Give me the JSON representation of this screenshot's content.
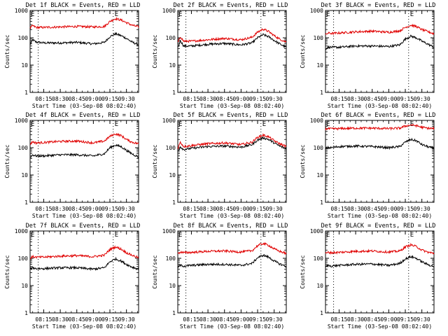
{
  "figure": {
    "ylabel": "Counts/sec",
    "xlabel": "Start Time (03-Sep-08 08:02:40)",
    "event_marker": "E",
    "colors": {
      "events": "#000000",
      "lld": "#e00000",
      "axes": "#000000",
      "background": "#ffffff"
    }
  },
  "chart_data": [
    {
      "type": "line",
      "panel": 1,
      "title": "Det 1f BLACK = Events, RED = LLD",
      "xlabel": "Start Time (03-Sep-08 08:02:40)",
      "ylabel": "Counts/sec",
      "yscale": "log",
      "ylim": [
        1,
        1000
      ],
      "yticks": [
        "1",
        "10",
        "100",
        "1000"
      ],
      "xlim": [
        "08:02:40",
        "09:41"
      ],
      "xticks": [
        "08:15",
        "08:30",
        "08:45",
        "09:00",
        "09:15",
        "09:30"
      ],
      "markers": [
        {
          "time": "08:10",
          "label": ""
        },
        {
          "time": "09:18",
          "label": "E"
        }
      ],
      "series": [
        {
          "name": "Events",
          "color": "#000000",
          "x": [
            "08:03",
            "08:05",
            "08:08",
            "08:15",
            "08:30",
            "08:45",
            "09:00",
            "09:10",
            "09:15",
            "09:20",
            "09:25",
            "09:30",
            "09:35",
            "09:41"
          ],
          "values": [
            60,
            85,
            70,
            65,
            65,
            68,
            60,
            68,
            110,
            140,
            120,
            95,
            70,
            55
          ]
        },
        {
          "name": "LLD",
          "color": "#e00000",
          "x": [
            "08:03",
            "08:05",
            "08:08",
            "08:15",
            "08:30",
            "08:45",
            "09:00",
            "09:10",
            "09:15",
            "09:20",
            "09:25",
            "09:30",
            "09:35",
            "09:41"
          ],
          "values": [
            230,
            280,
            240,
            240,
            250,
            260,
            250,
            260,
            400,
            500,
            450,
            360,
            290,
            250
          ]
        }
      ]
    },
    {
      "type": "line",
      "panel": 2,
      "title": "Det 2f BLACK = Events, RED = LLD",
      "xlabel": "Start Time (03-Sep-08 08:02:40)",
      "ylabel": "Counts/sec",
      "yscale": "log",
      "ylim": [
        1,
        1000
      ],
      "yticks": [
        "1",
        "10",
        "100",
        "1000"
      ],
      "xlim": [
        "08:02:40",
        "09:41"
      ],
      "xticks": [
        "08:15",
        "08:30",
        "08:45",
        "09:00",
        "09:15",
        "09:30"
      ],
      "markers": [
        {
          "time": "08:10",
          "label": ""
        },
        {
          "time": "09:18",
          "label": "E"
        }
      ],
      "series": [
        {
          "name": "Events",
          "color": "#000000",
          "x": [
            "08:03",
            "08:05",
            "08:08",
            "08:15",
            "08:30",
            "08:45",
            "09:00",
            "09:10",
            "09:15",
            "09:20",
            "09:25",
            "09:30",
            "09:35",
            "09:41"
          ],
          "values": [
            45,
            80,
            50,
            50,
            58,
            62,
            55,
            65,
            100,
            130,
            110,
            80,
            60,
            45
          ]
        },
        {
          "name": "LLD",
          "color": "#e00000",
          "x": [
            "08:03",
            "08:05",
            "08:08",
            "08:15",
            "08:30",
            "08:45",
            "09:00",
            "09:10",
            "09:15",
            "09:20",
            "09:25",
            "09:30",
            "09:35",
            "09:41"
          ],
          "values": [
            70,
            110,
            75,
            75,
            85,
            95,
            85,
            105,
            160,
            210,
            170,
            120,
            90,
            70
          ]
        }
      ]
    },
    {
      "type": "line",
      "panel": 3,
      "title": "Det 3f BLACK = Events, RED = LLD",
      "xlabel": "Start Time (03-Sep-08 08:02:40)",
      "ylabel": "Counts/sec",
      "yscale": "log",
      "ylim": [
        1,
        1000
      ],
      "yticks": [
        "1",
        "10",
        "100",
        "1000"
      ],
      "xlim": [
        "08:02:40",
        "09:41"
      ],
      "xticks": [
        "08:15",
        "08:30",
        "08:45",
        "09:00",
        "09:15",
        "09:30"
      ],
      "markers": [
        {
          "time": "08:10",
          "label": ""
        },
        {
          "time": "09:18",
          "label": "E"
        }
      ],
      "series": [
        {
          "name": "Events",
          "color": "#000000",
          "x": [
            "08:03",
            "08:05",
            "08:08",
            "08:15",
            "08:30",
            "08:45",
            "09:00",
            "09:10",
            "09:15",
            "09:20",
            "09:25",
            "09:30",
            "09:35",
            "09:41"
          ],
          "values": [
            40,
            45,
            45,
            45,
            50,
            50,
            48,
            55,
            90,
            115,
            100,
            75,
            60,
            45
          ]
        },
        {
          "name": "LLD",
          "color": "#e00000",
          "x": [
            "08:03",
            "08:05",
            "08:08",
            "08:15",
            "08:30",
            "08:45",
            "09:00",
            "09:10",
            "09:15",
            "09:20",
            "09:25",
            "09:30",
            "09:35",
            "09:41"
          ],
          "values": [
            130,
            150,
            145,
            150,
            165,
            175,
            160,
            180,
            240,
            290,
            260,
            200,
            170,
            140
          ]
        }
      ]
    },
    {
      "type": "line",
      "panel": 4,
      "title": "Det 4f BLACK = Events, RED = LLD",
      "xlabel": "Start Time (03-Sep-08 08:02:40)",
      "ylabel": "Counts/sec",
      "yscale": "log",
      "ylim": [
        1,
        1000
      ],
      "yticks": [
        "1",
        "10",
        "100",
        "1000"
      ],
      "xlim": [
        "08:02:40",
        "09:41"
      ],
      "xticks": [
        "08:15",
        "08:30",
        "08:45",
        "09:00",
        "09:15",
        "09:30"
      ],
      "markers": [
        {
          "time": "08:10",
          "label": ""
        },
        {
          "time": "09:18",
          "label": "E"
        }
      ],
      "series": [
        {
          "name": "Events",
          "color": "#000000",
          "x": [
            "08:03",
            "08:05",
            "08:08",
            "08:15",
            "08:30",
            "08:45",
            "09:00",
            "09:10",
            "09:15",
            "09:20",
            "09:25",
            "09:30",
            "09:35",
            "09:41"
          ],
          "values": [
            45,
            55,
            50,
            50,
            55,
            55,
            50,
            60,
            100,
            125,
            110,
            80,
            60,
            45
          ]
        },
        {
          "name": "LLD",
          "color": "#e00000",
          "x": [
            "08:03",
            "08:05",
            "08:08",
            "08:15",
            "08:30",
            "08:45",
            "09:00",
            "09:10",
            "09:15",
            "09:20",
            "09:25",
            "09:30",
            "09:35",
            "09:41"
          ],
          "values": [
            140,
            165,
            150,
            155,
            170,
            175,
            150,
            175,
            260,
            320,
            280,
            200,
            160,
            140
          ]
        }
      ]
    },
    {
      "type": "line",
      "panel": 5,
      "title": "Det 5f BLACK = Events, RED = LLD",
      "xlabel": "Start Time (03-Sep-08 08:02:40)",
      "ylabel": "Counts/sec",
      "yscale": "log",
      "ylim": [
        1,
        1000
      ],
      "yticks": [
        "1",
        "10",
        "100",
        "1000"
      ],
      "xlim": [
        "08:02:40",
        "09:41"
      ],
      "xticks": [
        "08:15",
        "08:30",
        "08:45",
        "09:00",
        "09:15",
        "09:30"
      ],
      "markers": [
        {
          "time": "08:10",
          "label": ""
        },
        {
          "time": "09:18",
          "label": "E"
        }
      ],
      "series": [
        {
          "name": "Events",
          "color": "#000000",
          "x": [
            "08:03",
            "08:05",
            "08:08",
            "08:15",
            "08:30",
            "08:45",
            "09:00",
            "09:10",
            "09:15",
            "09:20",
            "09:25",
            "09:30",
            "09:35",
            "09:41"
          ],
          "values": [
            75,
            110,
            85,
            95,
            110,
            115,
            105,
            130,
            190,
            230,
            200,
            150,
            115,
            90
          ]
        },
        {
          "name": "LLD",
          "color": "#e00000",
          "x": [
            "08:03",
            "08:05",
            "08:08",
            "08:15",
            "08:30",
            "08:45",
            "09:00",
            "09:10",
            "09:15",
            "09:20",
            "09:25",
            "09:30",
            "09:35",
            "09:41"
          ],
          "values": [
            100,
            160,
            110,
            120,
            140,
            150,
            130,
            160,
            240,
            290,
            250,
            180,
            140,
            110
          ]
        }
      ]
    },
    {
      "type": "line",
      "panel": 6,
      "title": "Det 6f BLACK = Events, RED = LLD",
      "xlabel": "Start Time (03-Sep-08 08:02:40)",
      "ylabel": "Counts/sec",
      "yscale": "log",
      "ylim": [
        1,
        1000
      ],
      "yticks": [
        "1",
        "10",
        "100",
        "1000"
      ],
      "xlim": [
        "08:02:40",
        "09:41"
      ],
      "xticks": [
        "08:15",
        "08:30",
        "08:45",
        "09:00",
        "09:15",
        "09:30"
      ],
      "markers": [
        {
          "time": "08:10",
          "label": ""
        },
        {
          "time": "09:18",
          "label": "E"
        }
      ],
      "series": [
        {
          "name": "Events",
          "color": "#000000",
          "x": [
            "08:03",
            "08:05",
            "08:08",
            "08:15",
            "08:30",
            "08:45",
            "09:00",
            "09:10",
            "09:15",
            "09:20",
            "09:25",
            "09:30",
            "09:35",
            "09:41"
          ],
          "values": [
            95,
            100,
            100,
            110,
            115,
            110,
            100,
            110,
            160,
            200,
            180,
            130,
            110,
            95
          ]
        },
        {
          "name": "LLD",
          "color": "#e00000",
          "x": [
            "08:03",
            "08:05",
            "08:08",
            "08:15",
            "08:30",
            "08:45",
            "09:00",
            "09:10",
            "09:15",
            "09:20",
            "09:25",
            "09:30",
            "09:35",
            "09:41"
          ],
          "values": [
            480,
            500,
            490,
            500,
            520,
            520,
            500,
            520,
            620,
            680,
            640,
            560,
            520,
            500
          ]
        }
      ]
    },
    {
      "type": "line",
      "panel": 7,
      "title": "Det 7f BLACK = Events, RED = LLD",
      "xlabel": "Start Time (03-Sep-08 08:02:40)",
      "ylabel": "Counts/sec",
      "yscale": "log",
      "ylim": [
        1,
        1000
      ],
      "yticks": [
        "1",
        "10",
        "100",
        "1000"
      ],
      "xlim": [
        "08:02:40",
        "09:41"
      ],
      "xticks": [
        "08:15",
        "08:30",
        "08:45",
        "09:00",
        "09:15",
        "09:30"
      ],
      "markers": [
        {
          "time": "08:10",
          "label": ""
        },
        {
          "time": "09:18",
          "label": "E"
        }
      ],
      "series": [
        {
          "name": "Events",
          "color": "#000000",
          "x": [
            "08:03",
            "08:05",
            "08:08",
            "08:15",
            "08:30",
            "08:45",
            "09:00",
            "09:10",
            "09:15",
            "09:20",
            "09:25",
            "09:30",
            "09:35",
            "09:41"
          ],
          "values": [
            40,
            45,
            42,
            42,
            45,
            45,
            40,
            45,
            75,
            95,
            80,
            60,
            48,
            40
          ]
        },
        {
          "name": "LLD",
          "color": "#e00000",
          "x": [
            "08:03",
            "08:05",
            "08:08",
            "08:15",
            "08:30",
            "08:45",
            "09:00",
            "09:10",
            "09:15",
            "09:20",
            "09:25",
            "09:30",
            "09:35",
            "09:41"
          ],
          "values": [
            100,
            115,
            110,
            110,
            120,
            125,
            115,
            130,
            210,
            260,
            220,
            160,
            130,
            105
          ]
        }
      ]
    },
    {
      "type": "line",
      "panel": 8,
      "title": "Det 8f BLACK = Events, RED = LLD",
      "xlabel": "Start Time (03-Sep-08 08:02:40)",
      "ylabel": "Counts/sec",
      "yscale": "log",
      "ylim": [
        1,
        1000
      ],
      "yticks": [
        "1",
        "10",
        "100",
        "1000"
      ],
      "xlim": [
        "08:02:40",
        "09:41"
      ],
      "xticks": [
        "08:15",
        "08:30",
        "08:45",
        "09:00",
        "09:15",
        "09:30"
      ],
      "markers": [
        {
          "time": "08:10",
          "label": ""
        },
        {
          "time": "09:18",
          "label": "E"
        }
      ],
      "series": [
        {
          "name": "Events",
          "color": "#000000",
          "x": [
            "08:03",
            "08:05",
            "08:08",
            "08:15",
            "08:30",
            "08:45",
            "09:00",
            "09:10",
            "09:15",
            "09:20",
            "09:25",
            "09:30",
            "09:35",
            "09:41"
          ],
          "values": [
            50,
            55,
            52,
            55,
            60,
            60,
            55,
            65,
            105,
            130,
            110,
            80,
            62,
            50
          ]
        },
        {
          "name": "LLD",
          "color": "#e00000",
          "x": [
            "08:03",
            "08:05",
            "08:08",
            "08:15",
            "08:30",
            "08:45",
            "09:00",
            "09:10",
            "09:15",
            "09:20",
            "09:25",
            "09:30",
            "09:35",
            "09:41"
          ],
          "values": [
            150,
            170,
            160,
            165,
            180,
            185,
            170,
            190,
            290,
            350,
            300,
            220,
            180,
            150
          ]
        }
      ]
    },
    {
      "type": "line",
      "panel": 9,
      "title": "Det 9f BLACK = Events, RED = LLD",
      "xlabel": "Start Time (03-Sep-08 08:02:40)",
      "ylabel": "Counts/sec",
      "yscale": "log",
      "ylim": [
        1,
        1000
      ],
      "yticks": [
        "1",
        "10",
        "100",
        "1000"
      ],
      "xlim": [
        "08:02:40",
        "09:41"
      ],
      "xticks": [
        "08:15",
        "08:30",
        "08:45",
        "09:00",
        "09:15",
        "09:30"
      ],
      "markers": [
        {
          "time": "08:10",
          "label": ""
        },
        {
          "time": "09:18",
          "label": "E"
        }
      ],
      "series": [
        {
          "name": "Events",
          "color": "#000000",
          "x": [
            "08:03",
            "08:05",
            "08:08",
            "08:15",
            "08:30",
            "08:45",
            "09:00",
            "09:10",
            "09:15",
            "09:20",
            "09:25",
            "09:30",
            "09:35",
            "09:41"
          ],
          "values": [
            50,
            55,
            52,
            55,
            60,
            62,
            55,
            65,
            95,
            115,
            100,
            75,
            60,
            50
          ]
        },
        {
          "name": "LLD",
          "color": "#e00000",
          "x": [
            "08:03",
            "08:05",
            "08:08",
            "08:15",
            "08:30",
            "08:45",
            "09:00",
            "09:10",
            "09:15",
            "09:20",
            "09:25",
            "09:30",
            "09:35",
            "09:41"
          ],
          "values": [
            150,
            165,
            160,
            165,
            180,
            185,
            170,
            185,
            260,
            310,
            270,
            200,
            170,
            150
          ]
        }
      ]
    }
  ]
}
